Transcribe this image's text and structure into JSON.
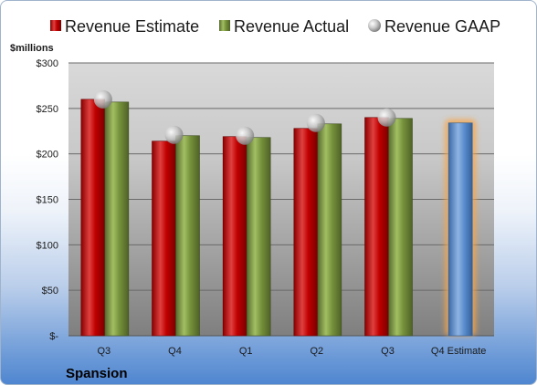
{
  "company": "Spansion",
  "colors": {
    "estimate": "#c00000",
    "actual": "#77933c",
    "gaap": "#b0b0b0",
    "forecast": "#4f81bd",
    "forecast_glow": "#f7a54a"
  },
  "chart_data": {
    "type": "bar",
    "ylabel": "$millions",
    "ylim": [
      0,
      300
    ],
    "yticks": [
      0,
      50,
      100,
      150,
      200,
      250,
      300
    ],
    "ytick_labels": [
      "$-",
      "$50",
      "$100",
      "$150",
      "$200",
      "$250",
      "$300"
    ],
    "categories": [
      "Q3",
      "Q4",
      "Q1",
      "Q2",
      "Q3",
      "Q4 Estimate"
    ],
    "legend_position": "top",
    "grid": true,
    "series": [
      {
        "name": "Revenue Estimate",
        "kind": "bar",
        "values": [
          260,
          214,
          219,
          228,
          240,
          234
        ]
      },
      {
        "name": "Revenue Actual",
        "kind": "bar",
        "values": [
          257,
          220,
          218,
          233,
          239,
          null
        ]
      },
      {
        "name": "Revenue GAAP",
        "kind": "marker",
        "values": [
          260,
          221,
          220,
          234,
          240,
          null
        ]
      }
    ]
  }
}
